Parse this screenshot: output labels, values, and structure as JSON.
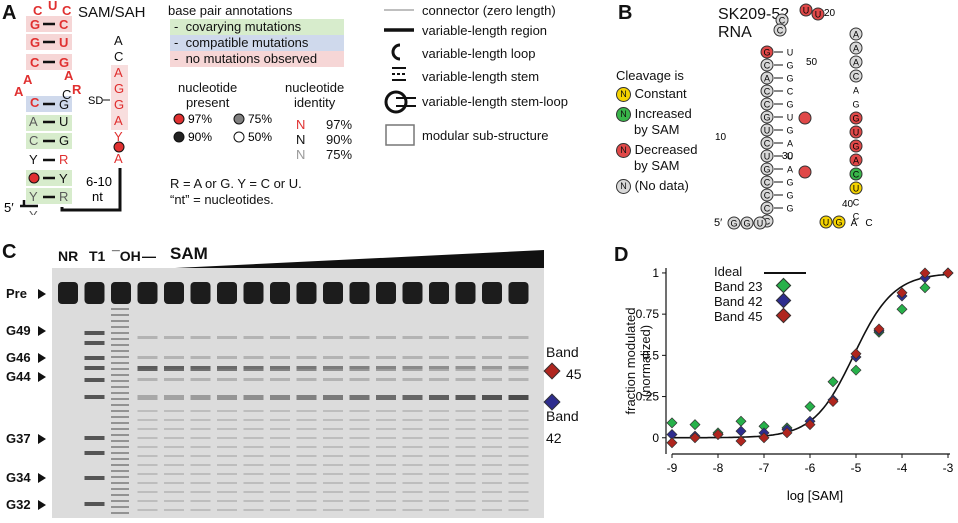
{
  "colors": {
    "red": "#e03030",
    "dark_red": "#a0201e",
    "green_bg": "#d7eccc",
    "blue_bg": "#cfd9ec",
    "pink_bg": "#f6d6d6",
    "yellow": "#f5d300",
    "green_nt": "#39b54a",
    "red_nt": "#e04848",
    "grey_nt": "#d8d8d8",
    "green_pt": "#27b14a",
    "blue_pt": "#2d2c8e",
    "red_pt": "#b0251e"
  },
  "panelA": {
    "label": "A",
    "title": "SAM/SAH",
    "legend_title": "base pair annotations",
    "legend_items": [
      "covarying mutations",
      "compatible mutations",
      "no mutations observed"
    ],
    "present_title": [
      "nucleotide",
      "present"
    ],
    "present_items": [
      "97%",
      "75%",
      "90%",
      "50%"
    ],
    "identity_title": [
      "nucleotide",
      "identity"
    ],
    "identity_items": [
      {
        "letter": "N",
        "pct": "97%"
      },
      {
        "letter": "N",
        "pct": "90%"
      },
      {
        "letter": "N",
        "pct": "75%"
      }
    ],
    "footnote1": "R = A or G. Y = C or U.",
    "footnote2": "“nt” = nucleotides.",
    "range_label1": "6-10",
    "range_label2": "nt",
    "five_prime": "5′",
    "sd_label": "SD",
    "struct_legend": [
      "connector (zero length)",
      "variable-length region",
      "variable-length loop",
      "variable-length stem",
      "variable-length stem-loop",
      "modular sub-structure"
    ]
  },
  "panelB": {
    "label": "B",
    "title1": "SK209-52",
    "title2": "RNA",
    "cleavage_title": "Cleavage is",
    "legend": [
      {
        "letter": "N",
        "text": [
          "Constant"
        ],
        "kind": "yellow"
      },
      {
        "letter": "N",
        "text": [
          "Increased",
          "by SAM"
        ],
        "kind": "green"
      },
      {
        "letter": "N",
        "text": [
          "Decreased",
          "by SAM"
        ],
        "kind": "red"
      },
      {
        "letter": "N",
        "text": [
          "(No data)"
        ],
        "kind": "grey"
      }
    ],
    "numbers": [
      "20",
      "50",
      "10",
      "30",
      "40"
    ],
    "five_prime": "5′"
  },
  "panelC": {
    "label": "C",
    "lanes": [
      "NR",
      "T1",
      "¯OH",
      "—"
    ],
    "sam_label": "SAM",
    "markers": [
      "Pre",
      "G49",
      "G46",
      "G44",
      "G37",
      "G34",
      "G32"
    ],
    "band_label_a": "Band",
    "band_num_a": "45",
    "band_label_b": "Band",
    "band_num_b": "42"
  },
  "panelD": {
    "label": "D",
    "legend": [
      "Ideal",
      "Band 23",
      "Band 42",
      "Band 45"
    ]
  },
  "chart_data": {
    "type": "scatter",
    "title": "",
    "xlabel": "log [SAM]",
    "ylabel": "fraction modulated (normalized)",
    "xlim": [
      -9,
      -3
    ],
    "ylim": [
      0,
      1
    ],
    "xticks": [
      "-9",
      "-8",
      "-7",
      "-6",
      "-5",
      "-4",
      "-3"
    ],
    "yticks": [
      "0",
      "0.25",
      "0.5",
      "0.75",
      "1"
    ],
    "legend_position": "top-left",
    "ideal_curve": {
      "name": "Ideal",
      "kd_log": -5.05
    },
    "series": [
      {
        "name": "Band 23",
        "x": [
          -9,
          -8.5,
          -8,
          -7.5,
          -7,
          -6.5,
          -6,
          -5.5,
          -5,
          -4.5,
          -4,
          -3.5,
          -3
        ],
        "y": [
          0.09,
          0.08,
          0.03,
          0.1,
          0.07,
          0.06,
          0.19,
          0.34,
          0.41,
          0.64,
          0.78,
          0.91,
          1.0
        ]
      },
      {
        "name": "Band 42",
        "x": [
          -9,
          -8.5,
          -8,
          -7.5,
          -7,
          -6.5,
          -6,
          -5.5,
          -5,
          -4.5,
          -4,
          -3.5,
          -3
        ],
        "y": [
          0.02,
          0.01,
          0.02,
          0.04,
          0.03,
          0.05,
          0.1,
          0.23,
          0.49,
          0.65,
          0.86,
          0.97,
          1.0
        ]
      },
      {
        "name": "Band 45",
        "x": [
          -9,
          -8.5,
          -8,
          -7.5,
          -7,
          -6.5,
          -6,
          -5.5,
          -5,
          -4.5,
          -4,
          -3.5,
          -3
        ],
        "y": [
          -0.03,
          0.0,
          0.02,
          -0.02,
          0.0,
          0.03,
          0.08,
          0.22,
          0.51,
          0.66,
          0.88,
          1.0,
          1.0
        ]
      }
    ]
  }
}
